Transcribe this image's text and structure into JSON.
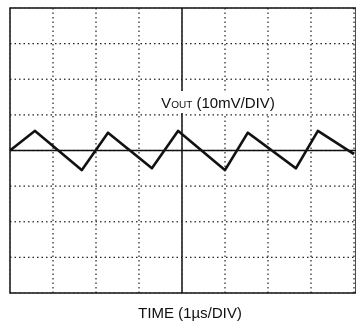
{
  "chart_data": {
    "type": "line",
    "x_label": "TIME (1µs/DIV)",
    "y_label": {
      "main": "V",
      "sub": "OUT",
      "rest": " (10mV/DIV)"
    },
    "x": [
      0,
      0.58,
      1.67,
      2.28,
      3.3,
      3.91,
      5.0,
      5.53,
      6.65,
      7.16,
      8.0
    ],
    "values": [
      0,
      5.5,
      -5.5,
      5,
      -5,
      5.5,
      -5.5,
      5,
      -5,
      5.5,
      -1
    ],
    "color": "#111111",
    "xlim": [
      0,
      8
    ],
    "ylim": [
      -40,
      40
    ],
    "xticks": [
      0,
      1,
      2,
      3,
      4,
      5,
      6,
      7,
      8
    ],
    "yticks": [
      -40,
      -30,
      -20,
      -10,
      0,
      10,
      20,
      30,
      40
    ],
    "grid": true
  }
}
